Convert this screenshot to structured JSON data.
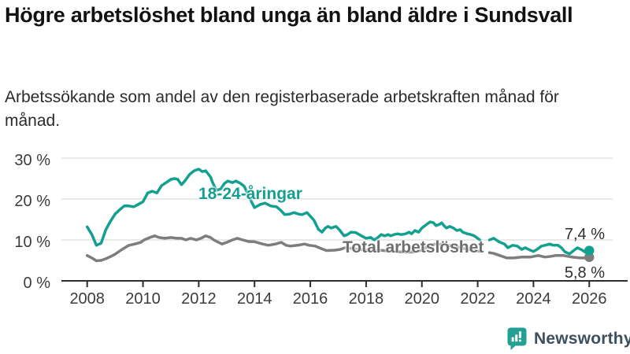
{
  "header": {
    "title": "Högre arbetslöshet bland unga än bland äldre i Sundsvall",
    "subtitle": "Arbetssökande som andel av den registerbaserade arbetskraften månad för månad."
  },
  "branding": {
    "logo_text": "Newsworthy",
    "logo_icon": "newsworthy-chart-bubble-icon",
    "logo_text_color": "#3d4e5e",
    "logo_icon_color": "#23a093"
  },
  "chart_data": {
    "type": "line",
    "title": "Högre arbetslöshet bland unga än bland äldre i Sundsvall",
    "subtitle": "Arbetssökande som andel av den registerbaserade arbetskraften månad för månad.",
    "xlabel": "",
    "ylabel": "",
    "x_axis": {
      "ticks": [
        2008,
        2010,
        2012,
        2014,
        2016,
        2018,
        2020,
        2022,
        2024,
        2026
      ],
      "range": [
        2008,
        2026.4
      ]
    },
    "y_axis": {
      "ticks": [
        0,
        10,
        20,
        30
      ],
      "tick_labels": [
        "0 %",
        "10 %",
        "20 %",
        "30 %"
      ],
      "range": [
        0,
        30
      ],
      "unit": "%",
      "gridlines": true
    },
    "legend_position": "inline-labels",
    "note": "gap in both series during 2022 (statistics break)",
    "series": [
      {
        "name": "18-24-åringar",
        "color": "#14a090",
        "end_label": "7,4 %",
        "end_value": 7.4,
        "end_x": 2026.0,
        "segments": [
          [
            [
              2008.0,
              13.2
            ],
            [
              2008.17,
              11.3
            ],
            [
              2008.33,
              8.7
            ],
            [
              2008.5,
              9.2
            ],
            [
              2008.67,
              12.5
            ],
            [
              2008.83,
              14.5
            ],
            [
              2009.0,
              16.3
            ],
            [
              2009.17,
              17.4
            ],
            [
              2009.33,
              18.3
            ],
            [
              2009.5,
              18.3
            ],
            [
              2009.67,
              18.1
            ],
            [
              2009.83,
              18.7
            ],
            [
              2010.0,
              19.3
            ],
            [
              2010.17,
              21.5
            ],
            [
              2010.33,
              21.9
            ],
            [
              2010.5,
              21.5
            ],
            [
              2010.67,
              23.3
            ],
            [
              2010.83,
              24.0
            ],
            [
              2011.0,
              24.8
            ],
            [
              2011.13,
              25.0
            ],
            [
              2011.25,
              24.8
            ],
            [
              2011.38,
              23.5
            ],
            [
              2011.5,
              24.4
            ],
            [
              2011.67,
              26.0
            ],
            [
              2011.83,
              26.9
            ],
            [
              2012.0,
              27.3
            ],
            [
              2012.13,
              26.7
            ],
            [
              2012.25,
              26.9
            ],
            [
              2012.42,
              25.4
            ],
            [
              2012.5,
              24.0
            ],
            [
              2012.63,
              22.1
            ],
            [
              2012.79,
              22.5
            ],
            [
              2012.92,
              23.8
            ],
            [
              2013.04,
              24.4
            ],
            [
              2013.21,
              24.0
            ],
            [
              2013.33,
              24.4
            ],
            [
              2013.5,
              23.8
            ],
            [
              2013.63,
              23.1
            ],
            [
              2013.79,
              20.8
            ],
            [
              2013.92,
              18.9
            ],
            [
              2014.0,
              17.9
            ],
            [
              2014.21,
              18.7
            ],
            [
              2014.38,
              19.0
            ],
            [
              2014.58,
              18.3
            ],
            [
              2014.79,
              18.1
            ],
            [
              2014.96,
              17.1
            ],
            [
              2015.08,
              16.2
            ],
            [
              2015.25,
              16.3
            ],
            [
              2015.42,
              16.7
            ],
            [
              2015.58,
              16.3
            ],
            [
              2015.71,
              16.2
            ],
            [
              2015.88,
              16.7
            ],
            [
              2016.0,
              15.8
            ],
            [
              2016.13,
              14.8
            ],
            [
              2016.29,
              12.6
            ],
            [
              2016.42,
              11.9
            ],
            [
              2016.54,
              12.9
            ],
            [
              2016.63,
              13.3
            ],
            [
              2016.75,
              12.9
            ],
            [
              2016.92,
              13.3
            ],
            [
              2017.04,
              12.5
            ],
            [
              2017.21,
              11.0
            ],
            [
              2017.33,
              11.3
            ],
            [
              2017.46,
              11.9
            ],
            [
              2017.63,
              11.8
            ],
            [
              2017.83,
              11.0
            ],
            [
              2018.0,
              10.4
            ],
            [
              2018.17,
              10.6
            ],
            [
              2018.29,
              10.0
            ],
            [
              2018.42,
              10.6
            ],
            [
              2018.54,
              11.3
            ],
            [
              2018.67,
              11.0
            ],
            [
              2018.79,
              11.3
            ],
            [
              2018.88,
              11.0
            ],
            [
              2019.0,
              11.3
            ],
            [
              2019.13,
              11.5
            ],
            [
              2019.25,
              11.3
            ],
            [
              2019.42,
              11.5
            ],
            [
              2019.54,
              11.9
            ],
            [
              2019.63,
              11.5
            ],
            [
              2019.75,
              12.3
            ],
            [
              2019.88,
              11.9
            ],
            [
              2020.0,
              12.9
            ],
            [
              2020.17,
              13.8
            ],
            [
              2020.29,
              14.4
            ],
            [
              2020.42,
              14.2
            ],
            [
              2020.5,
              13.5
            ],
            [
              2020.63,
              13.8
            ],
            [
              2020.71,
              14.2
            ],
            [
              2020.79,
              13.5
            ],
            [
              2020.88,
              12.9
            ],
            [
              2021.0,
              13.3
            ],
            [
              2021.13,
              12.9
            ],
            [
              2021.25,
              12.3
            ],
            [
              2021.38,
              12.5
            ],
            [
              2021.46,
              11.9
            ],
            [
              2021.63,
              11.5
            ],
            [
              2021.75,
              11.3
            ],
            [
              2021.88,
              11.0
            ],
            [
              2022.0,
              10.4
            ],
            [
              2022.08,
              10.0
            ]
          ],
          [
            [
              2022.42,
              10.0
            ],
            [
              2022.58,
              10.4
            ],
            [
              2022.75,
              9.6
            ],
            [
              2022.96,
              9.0
            ],
            [
              2023.08,
              8.1
            ],
            [
              2023.25,
              8.7
            ],
            [
              2023.42,
              8.5
            ],
            [
              2023.58,
              7.7
            ],
            [
              2023.71,
              8.1
            ],
            [
              2023.88,
              7.5
            ],
            [
              2024.0,
              7.2
            ],
            [
              2024.13,
              7.7
            ],
            [
              2024.29,
              8.5
            ],
            [
              2024.42,
              8.7
            ],
            [
              2024.58,
              9.0
            ],
            [
              2024.71,
              8.7
            ],
            [
              2024.88,
              8.7
            ],
            [
              2025.0,
              8.1
            ],
            [
              2025.13,
              7.1
            ],
            [
              2025.29,
              6.6
            ],
            [
              2025.46,
              7.5
            ],
            [
              2025.58,
              8.1
            ],
            [
              2025.75,
              7.5
            ],
            [
              2025.88,
              6.9
            ],
            [
              2026.0,
              7.4
            ]
          ]
        ]
      },
      {
        "name": "Total arbetslöshet",
        "color": "#7d7d7d",
        "end_label": "5,8 %",
        "end_value": 5.8,
        "end_x": 2026.0,
        "segments": [
          [
            [
              2008.0,
              6.2
            ],
            [
              2008.17,
              5.6
            ],
            [
              2008.33,
              4.9
            ],
            [
              2008.5,
              5.0
            ],
            [
              2008.67,
              5.4
            ],
            [
              2008.83,
              5.9
            ],
            [
              2009.0,
              6.5
            ],
            [
              2009.25,
              7.7
            ],
            [
              2009.5,
              8.7
            ],
            [
              2009.71,
              9.0
            ],
            [
              2009.92,
              9.4
            ],
            [
              2010.04,
              10.0
            ],
            [
              2010.25,
              10.6
            ],
            [
              2010.42,
              11.0
            ],
            [
              2010.58,
              10.6
            ],
            [
              2010.79,
              10.4
            ],
            [
              2011.0,
              10.6
            ],
            [
              2011.21,
              10.4
            ],
            [
              2011.38,
              10.4
            ],
            [
              2011.54,
              10.0
            ],
            [
              2011.71,
              10.4
            ],
            [
              2011.92,
              10.0
            ],
            [
              2012.08,
              10.4
            ],
            [
              2012.25,
              11.0
            ],
            [
              2012.42,
              10.6
            ],
            [
              2012.54,
              10.0
            ],
            [
              2012.71,
              9.4
            ],
            [
              2012.83,
              9.0
            ],
            [
              2013.0,
              9.4
            ],
            [
              2013.21,
              10.0
            ],
            [
              2013.38,
              10.4
            ],
            [
              2013.58,
              10.0
            ],
            [
              2013.79,
              9.6
            ],
            [
              2013.96,
              9.6
            ],
            [
              2014.08,
              9.4
            ],
            [
              2014.29,
              9.0
            ],
            [
              2014.5,
              8.7
            ],
            [
              2014.75,
              9.0
            ],
            [
              2014.96,
              9.4
            ],
            [
              2015.13,
              8.7
            ],
            [
              2015.29,
              8.5
            ],
            [
              2015.54,
              8.7
            ],
            [
              2015.79,
              9.0
            ],
            [
              2015.96,
              8.7
            ],
            [
              2016.17,
              8.5
            ],
            [
              2016.42,
              7.8
            ],
            [
              2016.58,
              7.4
            ],
            [
              2016.88,
              7.5
            ],
            [
              2017.08,
              7.7
            ],
            [
              2017.25,
              8.1
            ],
            [
              2017.5,
              7.9
            ],
            [
              2017.75,
              7.7
            ],
            [
              2018.0,
              7.5
            ],
            [
              2018.25,
              7.4
            ],
            [
              2018.5,
              7.5
            ],
            [
              2018.75,
              7.3
            ],
            [
              2019.0,
              7.2
            ],
            [
              2019.25,
              7.1
            ],
            [
              2019.5,
              7.0
            ],
            [
              2019.75,
              7.1
            ],
            [
              2020.0,
              7.5
            ],
            [
              2020.25,
              8.6
            ],
            [
              2020.5,
              9.0
            ],
            [
              2020.75,
              8.9
            ],
            [
              2021.0,
              8.6
            ],
            [
              2021.25,
              8.3
            ],
            [
              2021.5,
              7.9
            ],
            [
              2021.75,
              7.6
            ],
            [
              2022.0,
              7.3
            ],
            [
              2022.08,
              7.2
            ]
          ],
          [
            [
              2022.42,
              6.9
            ],
            [
              2022.58,
              6.7
            ],
            [
              2022.79,
              6.2
            ],
            [
              2023.04,
              5.6
            ],
            [
              2023.29,
              5.6
            ],
            [
              2023.58,
              5.8
            ],
            [
              2023.88,
              5.8
            ],
            [
              2024.17,
              6.2
            ],
            [
              2024.42,
              5.8
            ],
            [
              2024.63,
              6.0
            ],
            [
              2024.79,
              6.2
            ],
            [
              2025.08,
              6.2
            ],
            [
              2025.38,
              5.8
            ],
            [
              2025.67,
              5.6
            ],
            [
              2025.83,
              5.6
            ],
            [
              2026.0,
              5.8
            ]
          ]
        ]
      }
    ]
  }
}
